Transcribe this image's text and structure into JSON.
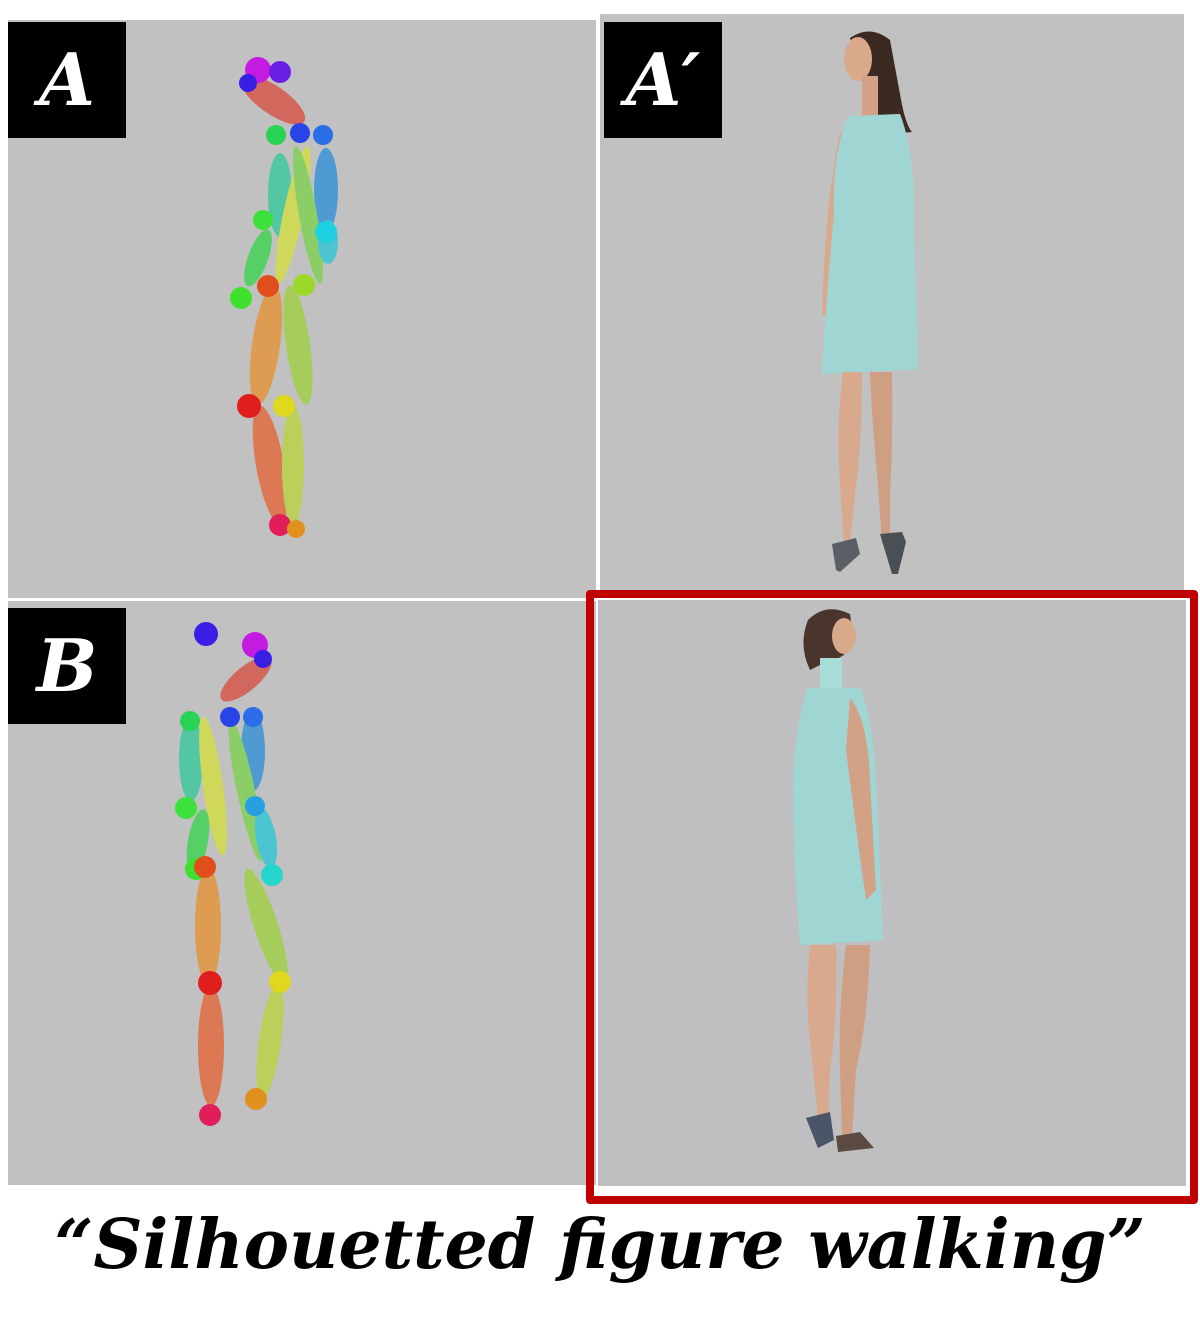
{
  "panels": {
    "a": {
      "label": "A"
    },
    "a_prime": {
      "label": "A′"
    },
    "b": {
      "label": "B"
    }
  },
  "caption": "“Silhouetted figure walking”",
  "colors": {
    "panel_bg": "#c1c1c1",
    "highlight_frame": "#c00000",
    "dress": "#9fd6d3"
  }
}
